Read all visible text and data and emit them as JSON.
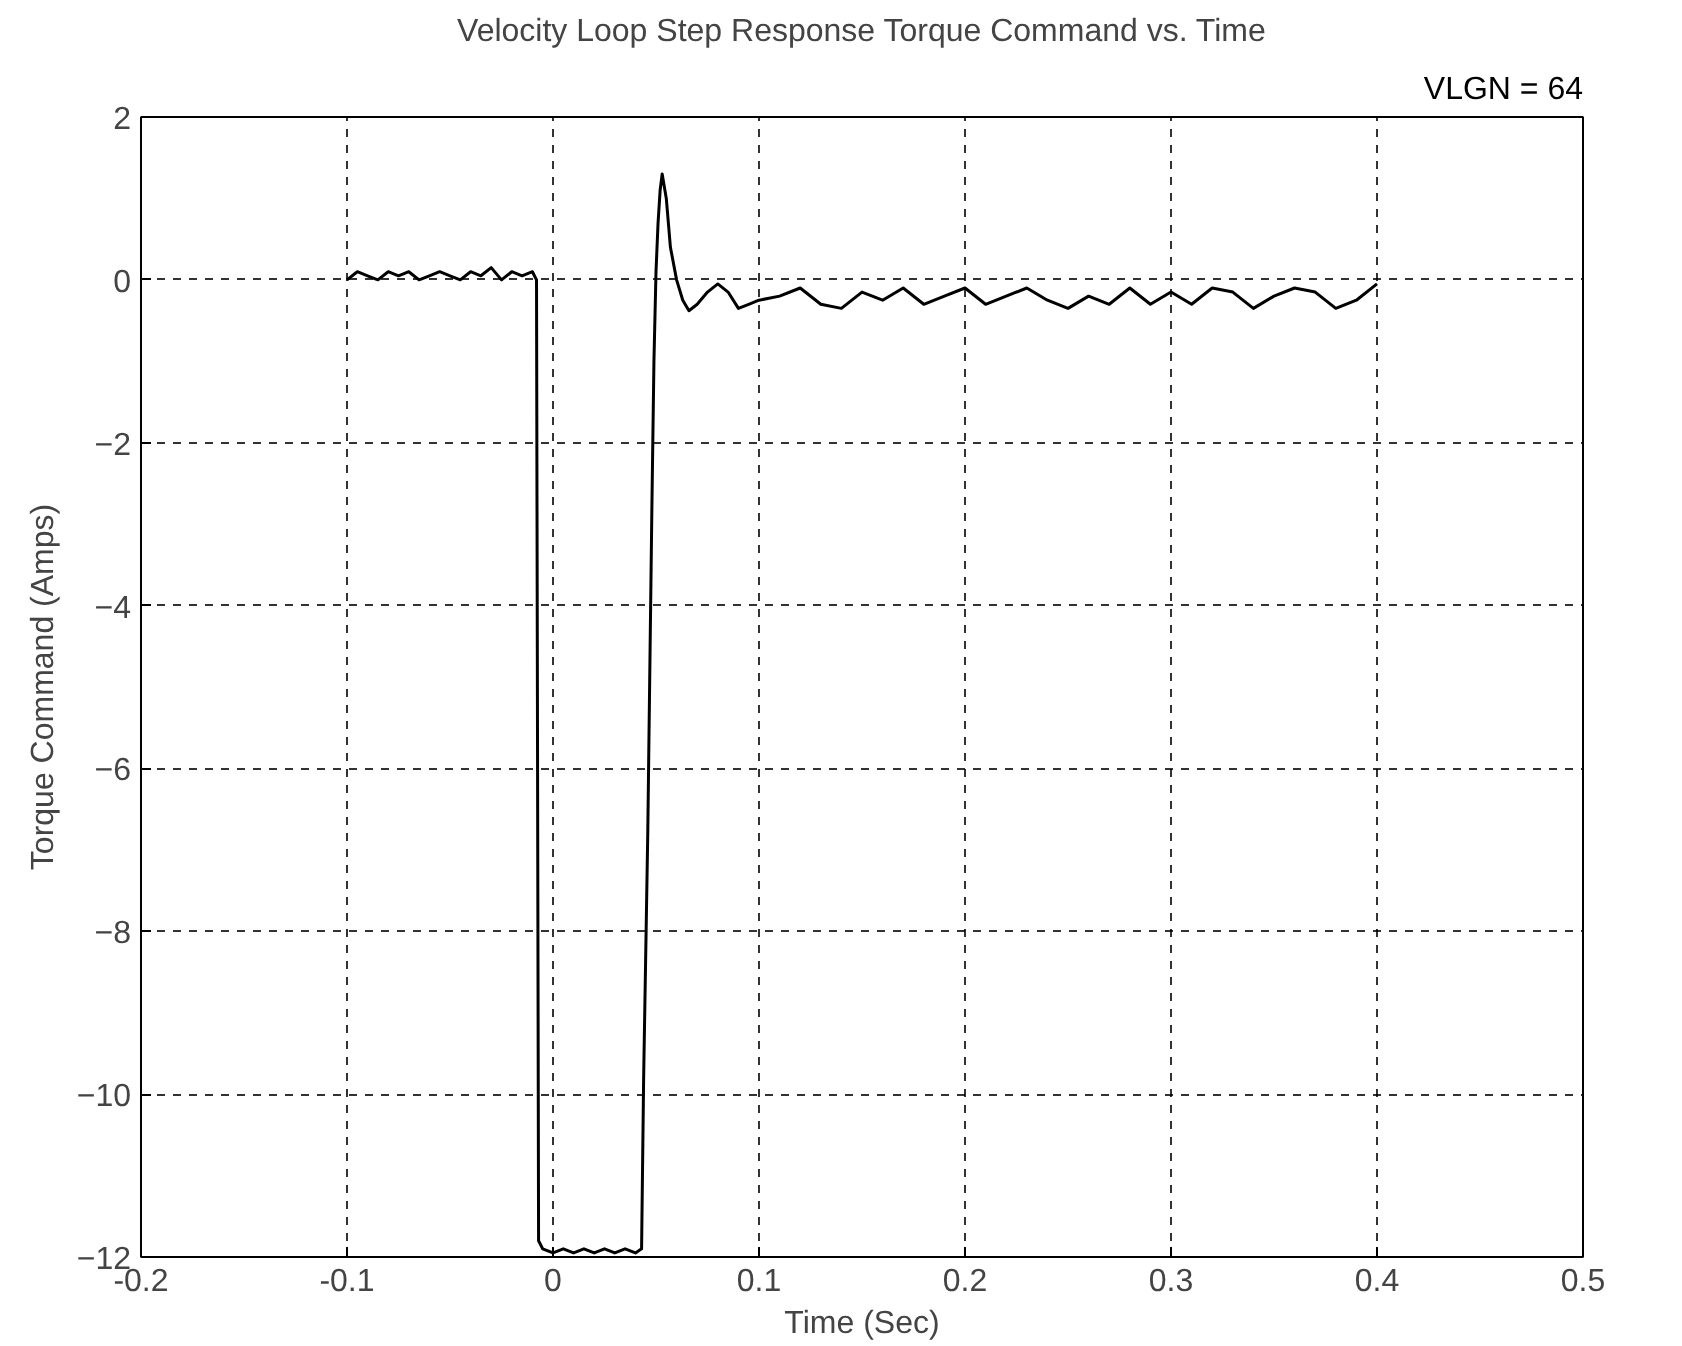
{
  "chart_data": {
    "type": "line",
    "title": "Velocity Loop Step Response Torque Command vs. Time",
    "xlabel": "Time (Sec)",
    "ylabel": "Torque Command (Amps)",
    "annotations": [
      "VLGN = 64"
    ],
    "xlim": [
      -0.2,
      0.5
    ],
    "ylim": [
      -12,
      2
    ],
    "xticks": [
      {
        "value": -0.2,
        "label": "-0.2"
      },
      {
        "value": -0.1,
        "label": "-0.1"
      },
      0,
      {
        "value": 0.1,
        "label": "0.1"
      },
      {
        "value": 0.2,
        "label": "0.2"
      },
      {
        "value": 0.3,
        "label": "0.3"
      },
      {
        "value": 0.4,
        "label": "0.4"
      },
      {
        "value": 0.5,
        "label": "0.5"
      }
    ],
    "yticks": [
      -12,
      -10,
      -8,
      -6,
      -4,
      -2,
      0,
      2
    ],
    "grid": true,
    "line_style": "solid",
    "marker": "none",
    "series": [
      {
        "color": "#000000",
        "x": [
          -0.1,
          -0.095,
          -0.09,
          -0.085,
          -0.08,
          -0.075,
          -0.07,
          -0.065,
          -0.06,
          -0.055,
          -0.05,
          -0.045,
          -0.04,
          -0.035,
          -0.03,
          -0.025,
          -0.02,
          -0.015,
          -0.01,
          -0.008,
          -0.007,
          -0.005,
          0.0,
          0.005,
          0.01,
          0.015,
          0.02,
          0.025,
          0.03,
          0.035,
          0.04,
          0.043,
          0.044,
          0.046,
          0.047,
          0.048,
          0.049,
          0.05,
          0.051,
          0.052,
          0.053,
          0.055,
          0.057,
          0.06,
          0.063,
          0.066,
          0.07,
          0.075,
          0.08,
          0.085,
          0.09,
          0.095,
          0.1,
          0.11,
          0.12,
          0.13,
          0.14,
          0.15,
          0.16,
          0.17,
          0.18,
          0.19,
          0.2,
          0.21,
          0.22,
          0.23,
          0.24,
          0.25,
          0.26,
          0.27,
          0.28,
          0.29,
          0.3,
          0.31,
          0.32,
          0.33,
          0.34,
          0.35,
          0.36,
          0.37,
          0.38,
          0.39,
          0.4
        ],
        "values": [
          0.0,
          0.1,
          0.05,
          0.0,
          0.1,
          0.05,
          0.1,
          0.0,
          0.05,
          0.1,
          0.05,
          0.0,
          0.1,
          0.05,
          0.15,
          0.0,
          0.1,
          0.05,
          0.1,
          0.0,
          -11.8,
          -11.9,
          -11.95,
          -11.9,
          -11.95,
          -11.9,
          -11.95,
          -11.9,
          -11.95,
          -11.9,
          -11.95,
          -11.9,
          -9.8,
          -6.8,
          -4.8,
          -2.8,
          -1.0,
          0.1,
          0.7,
          1.1,
          1.3,
          1.0,
          0.4,
          0.0,
          -0.25,
          -0.38,
          -0.3,
          -0.15,
          -0.05,
          -0.15,
          -0.35,
          -0.3,
          -0.25,
          -0.2,
          -0.1,
          -0.3,
          -0.35,
          -0.15,
          -0.25,
          -0.1,
          -0.3,
          -0.2,
          -0.1,
          -0.3,
          -0.2,
          -0.1,
          -0.25,
          -0.35,
          -0.2,
          -0.3,
          -0.1,
          -0.3,
          -0.15,
          -0.3,
          -0.1,
          -0.15,
          -0.35,
          -0.2,
          -0.1,
          -0.15,
          -0.35,
          -0.25,
          -0.05
        ]
      }
    ]
  }
}
